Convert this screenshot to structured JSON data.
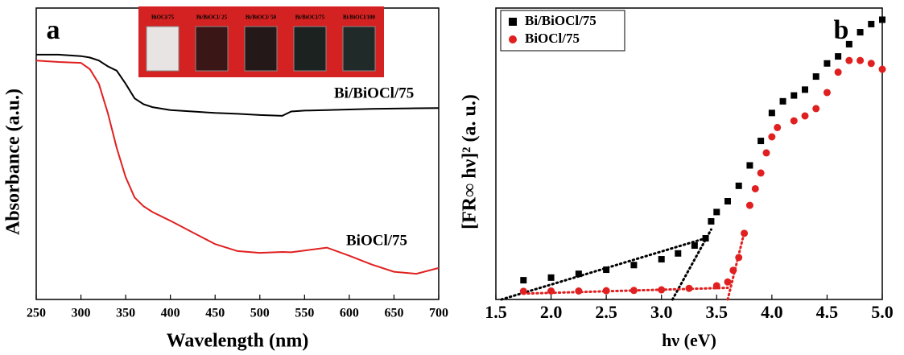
{
  "chart_data": [
    {
      "type": "line",
      "panel_label": "a",
      "x_label": "Wavelength (nm)",
      "y_label": "Absorbance (a.u.)",
      "x": [
        250,
        275,
        300,
        310,
        320,
        330,
        340,
        350,
        360,
        370,
        380,
        400,
        425,
        450,
        475,
        500,
        525,
        535,
        550,
        575,
        600,
        625,
        650,
        675,
        700
      ],
      "series": [
        {
          "name": "Bi/BiOCl/75",
          "color": "#000000",
          "values": [
            0.84,
            0.84,
            0.835,
            0.83,
            0.82,
            0.8,
            0.785,
            0.74,
            0.69,
            0.67,
            0.66,
            0.65,
            0.645,
            0.64,
            0.637,
            0.633,
            0.63,
            0.645,
            0.648,
            0.65,
            0.652,
            0.654,
            0.655,
            0.656,
            0.657
          ]
        },
        {
          "name": "BiOCl/75",
          "color": "#e02020",
          "values": [
            0.82,
            0.815,
            0.812,
            0.79,
            0.74,
            0.64,
            0.52,
            0.42,
            0.35,
            0.32,
            0.3,
            0.27,
            0.23,
            0.19,
            0.166,
            0.16,
            0.163,
            0.162,
            0.168,
            0.178,
            0.15,
            0.12,
            0.095,
            0.088,
            0.108
          ]
        }
      ],
      "xlim": [
        250,
        700
      ],
      "xticks": [
        250,
        300,
        350,
        400,
        450,
        500,
        550,
        600,
        650,
        700
      ],
      "ylim": [
        0,
        1
      ],
      "inset": {
        "labels": [
          "BiOCl/75",
          "Bi/BiOCl/ 25",
          "Bi/BiOCl/ 50",
          "Bi/BiOCl/75",
          "Bi/BiOCl/100"
        ]
      }
    },
    {
      "type": "scatter",
      "panel_label": "b",
      "x_label": "hν (eV)",
      "y_label": "[FR∞ hν]² (a. u.)",
      "legend": "upper left",
      "series": [
        {
          "name": "Bi/BiOCl/75",
          "color": "#000000",
          "marker": "square",
          "x": [
            1.75,
            2.0,
            2.25,
            2.5,
            2.75,
            3.0,
            3.15,
            3.3,
            3.4,
            3.45,
            3.5,
            3.6,
            3.7,
            3.8,
            3.9,
            4.0,
            4.1,
            4.2,
            4.3,
            4.4,
            4.5,
            4.6,
            4.7,
            4.8,
            4.9,
            5.0
          ],
          "values": [
            0.066,
            0.075,
            0.088,
            0.102,
            0.118,
            0.138,
            0.158,
            0.185,
            0.21,
            0.268,
            0.3,
            0.337,
            0.39,
            0.46,
            0.544,
            0.64,
            0.68,
            0.7,
            0.72,
            0.765,
            0.81,
            0.834,
            0.876,
            0.917,
            0.945,
            0.96
          ]
        },
        {
          "name": "BiOCl/75",
          "color": "#e02020",
          "marker": "circle",
          "x": [
            1.75,
            2.0,
            2.25,
            2.5,
            2.75,
            3.0,
            3.25,
            3.5,
            3.6,
            3.65,
            3.7,
            3.75,
            3.8,
            3.85,
            3.9,
            3.95,
            4.0,
            4.05,
            4.2,
            4.3,
            4.4,
            4.5,
            4.6,
            4.7,
            4.8,
            4.9,
            5.0
          ],
          "values": [
            0.028,
            0.029,
            0.029,
            0.03,
            0.031,
            0.033,
            0.038,
            0.047,
            0.06,
            0.1,
            0.144,
            0.227,
            0.323,
            0.38,
            0.434,
            0.503,
            0.558,
            0.59,
            0.613,
            0.63,
            0.655,
            0.71,
            0.78,
            0.82,
            0.82,
            0.81,
            0.79
          ]
        }
      ],
      "tangent_lines": [
        {
          "color": "#000000",
          "x": [
            1.55,
            3.4
          ],
          "values": [
            0,
            0.21
          ]
        },
        {
          "color": "#000000",
          "x": [
            3.1,
            3.45
          ],
          "values": [
            0,
            0.24
          ]
        },
        {
          "color": "#e02020",
          "x": [
            1.75,
            3.6
          ],
          "values": [
            0.02,
            0.04
          ]
        },
        {
          "color": "#e02020",
          "x": [
            3.6,
            3.75
          ],
          "values": [
            0,
            0.23
          ]
        }
      ],
      "xlim": [
        1.5,
        5.0
      ],
      "xticks": [
        1.5,
        {
          "value": 2.0,
          "label": "2.0"
        },
        2.5,
        {
          "value": 3.0,
          "label": "3.0"
        },
        3.5,
        {
          "value": 4.0,
          "label": "4.0"
        },
        4.5,
        {
          "value": 5.0,
          "label": "5.0"
        }
      ],
      "ylim": [
        0,
        1
      ]
    }
  ]
}
